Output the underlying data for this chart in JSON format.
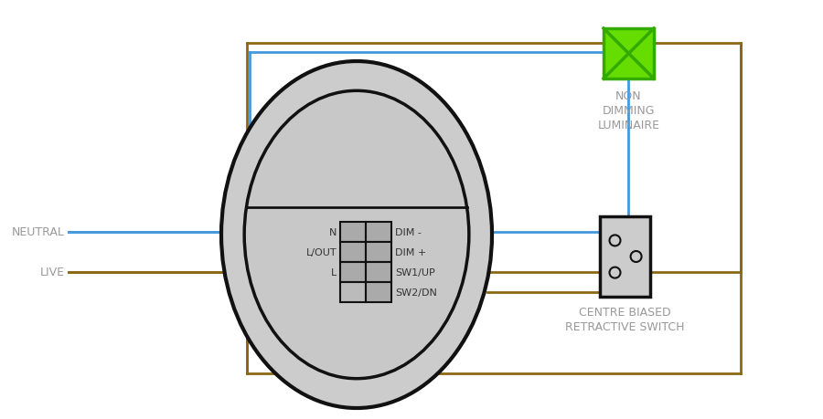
{
  "wire_brown": "#8B6914",
  "wire_blue": "#4499dd",
  "green_fill": "#66dd00",
  "green_edge": "#33aa00",
  "text_gray": "#999999",
  "text_dark": "#333333",
  "circle_outer_fill": "#cccccc",
  "circle_inner_fill": "#c8c8c8",
  "terminal_fill": "#bbbbbb",
  "terminal_edge": "#222222",
  "switch_fill": "#cccccc",
  "neutral_label": "NEUTRAL",
  "live_label": "LIVE",
  "luminaire_label": [
    "NON",
    "DIMMING",
    "LUMINAIRE"
  ],
  "switch_label": [
    "CENTRE BIASED",
    "RETRACTIVE SWITCH"
  ],
  "terminal_labels_left": [
    "N",
    "L/OUT",
    "L"
  ],
  "terminal_labels_right": [
    "DIM -",
    "DIM +",
    "SW1/UP",
    "SW2/DN"
  ]
}
